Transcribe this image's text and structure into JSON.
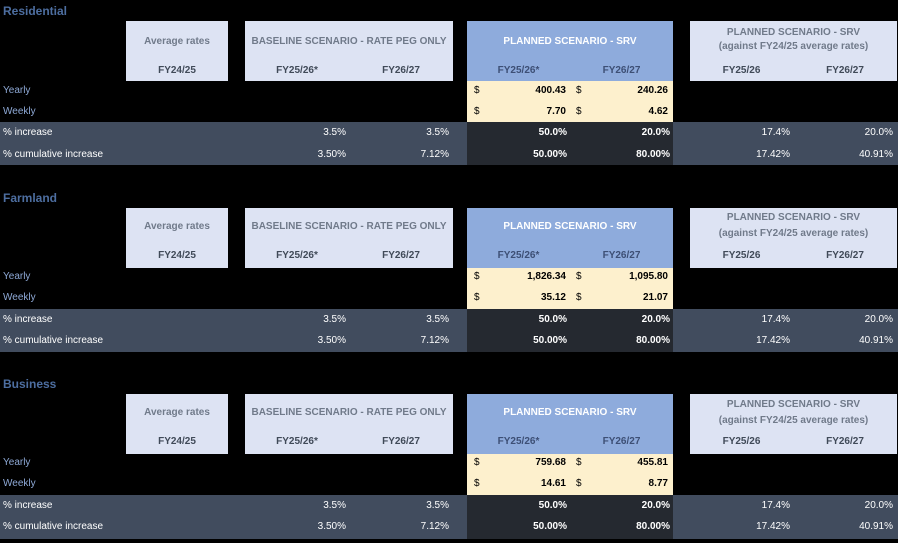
{
  "headers": {
    "average": "Average rates",
    "average_year": "FY24/25",
    "baseline": "BASELINE SCENARIO - RATE PEG ONLY",
    "baseline_y1": "FY25/26*",
    "baseline_y2": "FY26/27",
    "planned": "PLANNED SCENARIO - SRV",
    "planned_y1": "FY25/26*",
    "planned_y2": "FY26/27",
    "against": "PLANNED SCENARIO - SRV",
    "against_sub": "(against FY24/25 average rates)",
    "against_y1": "FY25/26",
    "against_y2": "FY26/27"
  },
  "row_labels": {
    "yearly": "Yearly",
    "weekly": "Weekly",
    "increase": "% increase",
    "cumulative": "% cumulative increase"
  },
  "currency": "$",
  "colors": {
    "title": "#4d6ea0",
    "light_header": "#dde3f3",
    "planned_header": "#8eabdc",
    "values_bg": "#fdf0cd",
    "row_dark": "#414c5e",
    "row_darker": "#252930"
  },
  "sections": [
    {
      "title": "Residential",
      "yearly": [
        "400.43",
        "240.26"
      ],
      "weekly": [
        "7.70",
        "4.62"
      ],
      "baseline_inc": [
        "3.5%",
        "3.5%"
      ],
      "baseline_cum": [
        "3.50%",
        "7.12%"
      ],
      "planned_inc": [
        "50.0%",
        "20.0%"
      ],
      "planned_cum": [
        "50.00%",
        "80.00%"
      ],
      "against_inc": [
        "17.4%",
        "20.0%"
      ],
      "against_cum": [
        "17.42%",
        "40.91%"
      ]
    },
    {
      "title": "Farmland",
      "yearly": [
        "1,826.34",
        "1,095.80"
      ],
      "weekly": [
        "35.12",
        "21.07"
      ],
      "baseline_inc": [
        "3.5%",
        "3.5%"
      ],
      "baseline_cum": [
        "3.50%",
        "7.12%"
      ],
      "planned_inc": [
        "50.0%",
        "20.0%"
      ],
      "planned_cum": [
        "50.00%",
        "80.00%"
      ],
      "against_inc": [
        "17.4%",
        "20.0%"
      ],
      "against_cum": [
        "17.42%",
        "40.91%"
      ]
    },
    {
      "title": "Business",
      "yearly": [
        "759.68",
        "455.81"
      ],
      "weekly": [
        "14.61",
        "8.77"
      ],
      "baseline_inc": [
        "3.5%",
        "3.5%"
      ],
      "baseline_cum": [
        "3.50%",
        "7.12%"
      ],
      "planned_inc": [
        "50.0%",
        "20.0%"
      ],
      "planned_cum": [
        "50.00%",
        "80.00%"
      ],
      "against_inc": [
        "17.4%",
        "20.0%"
      ],
      "against_cum": [
        "17.42%",
        "40.91%"
      ]
    }
  ]
}
